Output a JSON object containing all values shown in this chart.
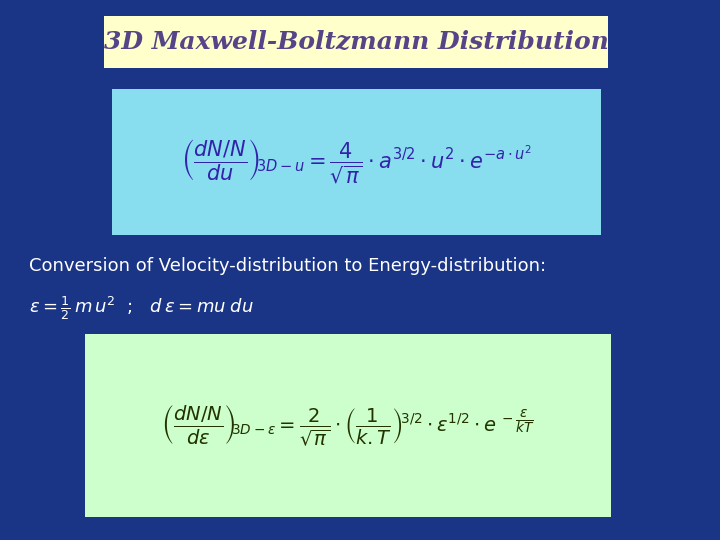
{
  "background_color": "#1a3585",
  "title_text": "3D Maxwell-Boltzmann Distribution",
  "title_bg": "#ffffcc",
  "title_color": "#554488",
  "title_fontsize": 18,
  "eq1_bg": "#88ddee",
  "eq1_color": "#3322aa",
  "conversion_color": "#ffffff",
  "conversion_fontsize": 13,
  "relation_color": "#ffffff",
  "relation_fontsize": 13,
  "eq2_bg": "#ccffcc",
  "eq2_color": "#223300",
  "fig_width": 7.2,
  "fig_height": 5.4,
  "dpi": 100
}
